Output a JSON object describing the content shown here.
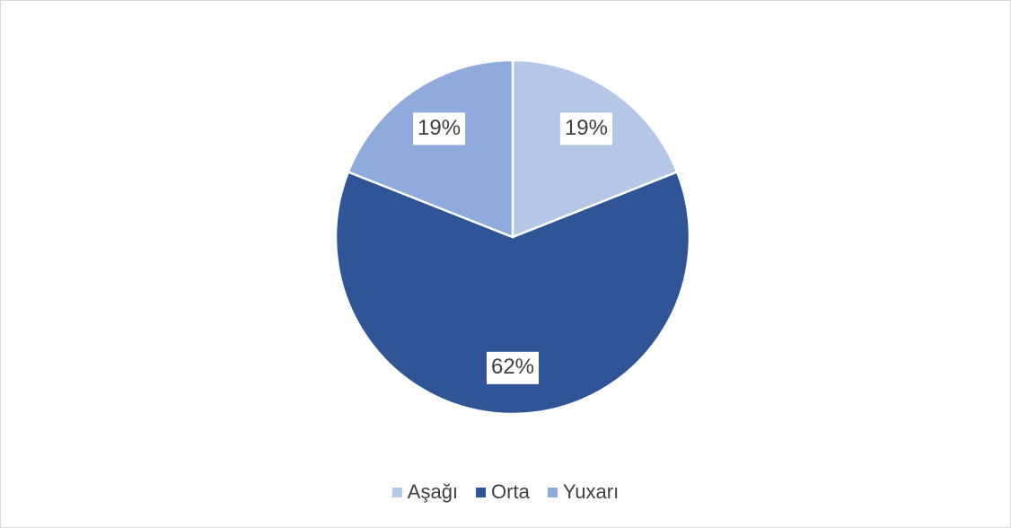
{
  "chart_data": {
    "type": "pie",
    "categories": [
      "Aşağı",
      "Orta",
      "Yuxarı"
    ],
    "values": [
      19,
      62,
      19
    ],
    "value_labels": [
      "19%",
      "62%",
      "19%"
    ],
    "colors": [
      "#b4c7e7",
      "#2f5597",
      "#8faadc"
    ],
    "legend": "bottom"
  }
}
